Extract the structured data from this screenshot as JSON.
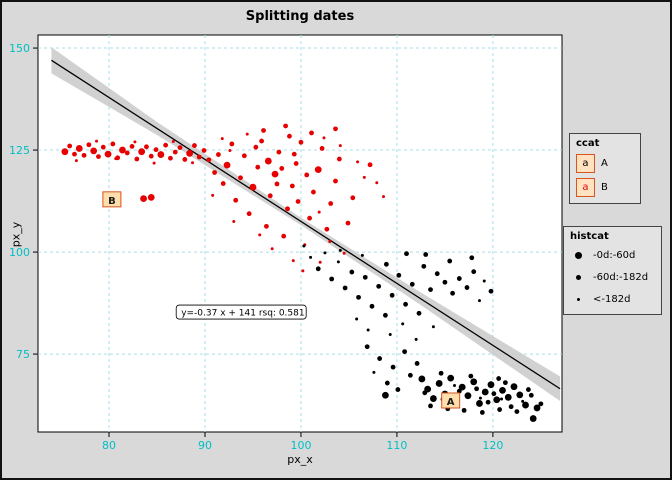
{
  "window": {
    "title": "Splitting dates"
  },
  "colors": {
    "background": "#d9d9d9",
    "panel": "#ffffff",
    "grid": "#a9dfe8",
    "tick_label": "#00bfc4",
    "point_red": "#e60000",
    "point_black": "#000000",
    "label_box_fill": "#ffdead",
    "label_box_border": "#d9541e",
    "band": "#c9c9c9"
  },
  "legends": {
    "ccat": {
      "title": "ccat",
      "items": [
        {
          "key_letter": "a",
          "key_color": "#000000",
          "label": "A"
        },
        {
          "key_letter": "a",
          "key_color": "#e60000",
          "label": "B"
        }
      ]
    },
    "histcat": {
      "title": "histcat",
      "items": [
        {
          "label": "-0d:-60d",
          "size": 3
        },
        {
          "label": "-60d:-182d",
          "size": 2
        },
        {
          "label": "<-182d",
          "size": 1
        }
      ]
    }
  },
  "chart_data": {
    "type": "scatter",
    "title": "Splitting dates",
    "xlabel": "px_x",
    "ylabel": "px_y",
    "xlim": [
      72.6,
      127.2
    ],
    "ylim": [
      55.9,
      153.2
    ],
    "xticks": [
      80,
      90,
      100,
      110,
      120
    ],
    "yticks": [
      75,
      100,
      125,
      150
    ],
    "grid": "dashed",
    "legend_position": "right",
    "regression": {
      "x1": 74.0,
      "y1": 147.0,
      "x2": 127.0,
      "y2": 66.5,
      "band_offsets": [
        [
          74,
          3.2
        ],
        [
          85,
          1.6
        ],
        [
          100,
          0.9
        ],
        [
          112,
          1.5
        ],
        [
          127,
          3.0
        ]
      ]
    },
    "annotation": {
      "x": 87.0,
      "y": 85.3,
      "text": "y=-0.37 x + 141 rsq: 0.581"
    },
    "point_labels": [
      {
        "text": "B",
        "x": 80.3,
        "y": 112.8
      },
      {
        "text": "A",
        "x": 115.6,
        "y": 63.5
      }
    ],
    "size_map": {
      "1": 1.5,
      "2": 2.4,
      "3": 3.4
    },
    "series": [
      {
        "name": "B",
        "color": "#e60000",
        "points": [
          [
            75.4,
            124.6,
            3
          ],
          [
            75.9,
            126.0,
            2
          ],
          [
            76.4,
            124.0,
            2
          ],
          [
            76.9,
            125.4,
            3
          ],
          [
            77.4,
            123.7,
            2
          ],
          [
            77.9,
            126.3,
            2
          ],
          [
            78.4,
            124.8,
            3
          ],
          [
            78.9,
            123.4,
            2
          ],
          [
            79.4,
            125.7,
            2
          ],
          [
            79.9,
            124.0,
            3
          ],
          [
            80.4,
            126.5,
            2
          ],
          [
            80.9,
            123.1,
            2
          ],
          [
            81.4,
            125.0,
            3
          ],
          [
            81.9,
            124.3,
            2
          ],
          [
            82.4,
            125.9,
            2
          ],
          [
            82.9,
            122.8,
            2
          ],
          [
            83.4,
            124.6,
            3
          ],
          [
            83.9,
            125.8,
            2
          ],
          [
            84.4,
            123.5,
            2
          ],
          [
            84.9,
            125.1,
            2
          ],
          [
            85.4,
            123.9,
            3
          ],
          [
            85.9,
            126.2,
            2
          ],
          [
            86.4,
            123.0,
            2
          ],
          [
            86.9,
            124.5,
            2
          ],
          [
            87.4,
            125.6,
            2
          ],
          [
            87.9,
            122.7,
            2
          ],
          [
            88.4,
            124.2,
            3
          ],
          [
            88.9,
            126.1,
            2
          ],
          [
            89.4,
            123.3,
            2
          ],
          [
            89.9,
            124.9,
            2
          ],
          [
            90.4,
            122.6,
            2
          ],
          [
            76.6,
            122.4,
            1
          ],
          [
            78.7,
            127.2,
            1
          ],
          [
            80.7,
            122.9,
            1
          ],
          [
            82.7,
            127.0,
            1
          ],
          [
            84.7,
            121.8,
            1
          ],
          [
            86.7,
            127.1,
            1
          ],
          [
            88.7,
            121.9,
            1
          ],
          [
            83.6,
            113.1,
            3
          ],
          [
            84.4,
            113.4,
            3
          ],
          [
            91.0,
            119.5,
            2
          ],
          [
            91.4,
            123.9,
            2
          ],
          [
            91.9,
            116.8,
            2
          ],
          [
            92.3,
            121.3,
            3
          ],
          [
            92.8,
            126.5,
            2
          ],
          [
            93.2,
            112.7,
            2
          ],
          [
            93.7,
            118.2,
            2
          ],
          [
            94.1,
            123.6,
            2
          ],
          [
            94.6,
            109.4,
            2
          ],
          [
            95.0,
            115.9,
            3
          ],
          [
            95.5,
            120.8,
            2
          ],
          [
            95.9,
            127.2,
            2
          ],
          [
            96.4,
            106.3,
            2
          ],
          [
            96.8,
            113.8,
            2
          ],
          [
            97.3,
            119.1,
            3
          ],
          [
            97.7,
            124.5,
            2
          ],
          [
            98.2,
            103.9,
            2
          ],
          [
            98.6,
            110.6,
            2
          ],
          [
            99.1,
            116.2,
            2
          ],
          [
            99.5,
            121.7,
            2
          ],
          [
            100.0,
            126.9,
            2
          ],
          [
            100.4,
            101.8,
            1
          ],
          [
            100.9,
            108.3,
            2
          ],
          [
            101.3,
            114.7,
            2
          ],
          [
            101.8,
            120.2,
            3
          ],
          [
            102.2,
            125.4,
            2
          ],
          [
            102.7,
            105.6,
            2
          ],
          [
            103.1,
            111.9,
            2
          ],
          [
            103.6,
            117.4,
            2
          ],
          [
            104.0,
            122.8,
            2
          ],
          [
            104.5,
            99.7,
            1
          ],
          [
            104.9,
            107.1,
            2
          ],
          [
            105.4,
            113.3,
            2
          ],
          [
            96.1,
            129.8,
            2
          ],
          [
            98.8,
            128.4,
            2
          ],
          [
            101.1,
            129.2,
            2
          ],
          [
            94.4,
            128.9,
            1
          ],
          [
            99.2,
            97.9,
            1
          ],
          [
            97.0,
            100.8,
            1
          ],
          [
            95.7,
            104.2,
            1
          ],
          [
            93.0,
            107.5,
            1
          ],
          [
            100.6,
            118.9,
            2
          ],
          [
            102.4,
            128.0,
            1
          ],
          [
            104.1,
            126.1,
            1
          ],
          [
            92.6,
            124.9,
            1
          ],
          [
            90.8,
            113.9,
            1
          ],
          [
            96.6,
            122.3,
            3
          ],
          [
            98.0,
            120.5,
            2
          ],
          [
            99.7,
            112.4,
            2
          ],
          [
            101.9,
            109.8,
            1
          ],
          [
            103.0,
            102.6,
            1
          ],
          [
            91.8,
            127.8,
            1
          ],
          [
            95.3,
            125.7,
            2
          ],
          [
            97.5,
            116.7,
            2
          ],
          [
            99.3,
            124.0,
            2
          ],
          [
            98.4,
            130.9,
            2
          ],
          [
            103.6,
            130.2,
            2
          ],
          [
            105.9,
            122.1,
            1
          ],
          [
            107.2,
            121.4,
            2
          ],
          [
            107.9,
            117.0,
            1
          ],
          [
            108.6,
            113.6,
            1
          ],
          [
            106.6,
            118.3,
            1
          ],
          [
            102.0,
            97.5,
            1
          ],
          [
            100.2,
            95.4,
            1
          ]
        ]
      },
      {
        "name": "A",
        "color": "#000000",
        "points": [
          [
            100.3,
            101.5,
            1
          ],
          [
            101.0,
            98.7,
            1
          ],
          [
            101.8,
            95.9,
            2
          ],
          [
            102.5,
            99.8,
            1
          ],
          [
            103.2,
            93.4,
            2
          ],
          [
            103.9,
            97.6,
            1
          ],
          [
            104.6,
            91.2,
            2
          ],
          [
            105.3,
            95.1,
            2
          ],
          [
            106.0,
            88.9,
            2
          ],
          [
            106.7,
            93.8,
            2
          ],
          [
            107.4,
            86.7,
            2
          ],
          [
            108.1,
            91.6,
            2
          ],
          [
            108.8,
            84.5,
            2
          ],
          [
            109.5,
            89.4,
            2
          ],
          [
            110.2,
            94.3,
            2
          ],
          [
            110.9,
            87.2,
            2
          ],
          [
            111.6,
            92.1,
            2
          ],
          [
            112.3,
            85.0,
            2
          ],
          [
            104.1,
            100.4,
            1
          ],
          [
            106.4,
            99.2,
            1
          ],
          [
            108.9,
            97.0,
            2
          ],
          [
            111.0,
            99.6,
            2
          ],
          [
            112.8,
            96.5,
            2
          ],
          [
            113.5,
            90.8,
            2
          ],
          [
            114.2,
            94.7,
            2
          ],
          [
            115.0,
            92.6,
            2
          ],
          [
            115.8,
            89.9,
            2
          ],
          [
            116.5,
            93.5,
            2
          ],
          [
            117.3,
            91.3,
            2
          ],
          [
            118.0,
            95.2,
            2
          ],
          [
            113.0,
            99.4,
            2
          ],
          [
            115.5,
            97.8,
            2
          ],
          [
            117.8,
            98.6,
            2
          ],
          [
            119.1,
            92.9,
            1
          ],
          [
            105.8,
            83.6,
            1
          ],
          [
            107.0,
            80.9,
            1
          ],
          [
            109.3,
            79.8,
            1
          ],
          [
            110.6,
            82.4,
            1
          ],
          [
            112.0,
            78.6,
            1
          ],
          [
            113.8,
            81.7,
            1
          ],
          [
            119.8,
            90.4,
            2
          ],
          [
            118.6,
            88.1,
            1
          ],
          [
            106.9,
            76.8,
            2
          ],
          [
            108.2,
            73.9,
            2
          ],
          [
            109.6,
            71.8,
            2
          ],
          [
            110.8,
            75.6,
            2
          ],
          [
            112.1,
            72.7,
            2
          ],
          [
            107.6,
            70.5,
            1
          ],
          [
            111.4,
            69.8,
            2
          ],
          [
            109.0,
            67.9,
            2
          ],
          [
            110.1,
            66.3,
            2
          ],
          [
            108.8,
            64.9,
            3
          ],
          [
            112.6,
            68.9,
            3
          ],
          [
            113.2,
            66.4,
            3
          ],
          [
            113.8,
            64.1,
            3
          ],
          [
            114.4,
            67.8,
            3
          ],
          [
            115.0,
            65.2,
            3
          ],
          [
            115.6,
            69.1,
            3
          ],
          [
            116.2,
            63.6,
            3
          ],
          [
            116.8,
            66.9,
            3
          ],
          [
            117.4,
            64.8,
            3
          ],
          [
            118.0,
            68.2,
            3
          ],
          [
            118.6,
            62.9,
            3
          ],
          [
            119.2,
            65.7,
            3
          ],
          [
            119.8,
            67.5,
            3
          ],
          [
            120.4,
            63.8,
            3
          ],
          [
            121.0,
            66.1,
            3
          ],
          [
            121.6,
            64.4,
            3
          ],
          [
            122.2,
            67.0,
            3
          ],
          [
            122.8,
            65.0,
            3
          ],
          [
            123.4,
            62.5,
            3
          ],
          [
            124.0,
            64.9,
            2
          ],
          [
            124.6,
            61.8,
            3
          ],
          [
            113.5,
            62.3,
            2
          ],
          [
            115.3,
            61.6,
            2
          ],
          [
            117.0,
            61.2,
            2
          ],
          [
            118.9,
            60.7,
            2
          ],
          [
            120.7,
            61.4,
            2
          ],
          [
            122.5,
            60.9,
            2
          ],
          [
            114.8,
            63.9,
            2
          ],
          [
            116.5,
            65.9,
            2
          ],
          [
            118.3,
            66.5,
            2
          ],
          [
            120.1,
            65.3,
            2
          ],
          [
            121.9,
            62.1,
            2
          ],
          [
            123.7,
            66.3,
            2
          ],
          [
            112.9,
            65.5,
            2
          ],
          [
            119.5,
            63.2,
            2
          ],
          [
            121.3,
            68.0,
            2
          ],
          [
            116.0,
            67.3,
            1
          ],
          [
            118.7,
            64.2,
            1
          ],
          [
            120.9,
            64.0,
            1
          ],
          [
            123.1,
            63.4,
            1
          ],
          [
            125.0,
            62.8,
            2
          ],
          [
            124.2,
            59.2,
            3
          ],
          [
            114.6,
            70.3,
            2
          ],
          [
            117.7,
            69.6,
            2
          ],
          [
            120.6,
            69.0,
            2
          ]
        ]
      }
    ]
  }
}
